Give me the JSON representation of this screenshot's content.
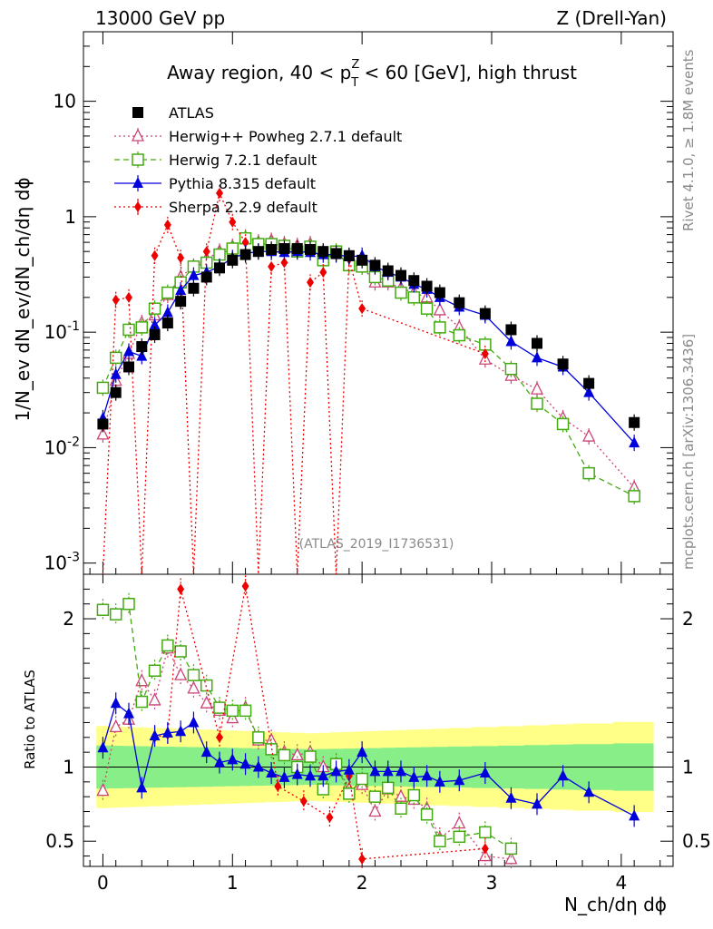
{
  "chart_data": {
    "type": "scatter",
    "header_left": "13000 GeV pp",
    "header_right": "Z (Drell-Yan)",
    "title_main": "Away region, 40 < p",
    "title_sup": "Z",
    "title_sub": "T",
    "title_rest": " < 60 [GeV], high thrust",
    "ylabel": "1/N_ev dN_ev/dN_ch/dη dϕ",
    "xlabel": "N_ch/dη dϕ",
    "ratio_ylabel": "Ratio to ATLAS",
    "watermark": "(ATLAS_2019_I1736531)",
    "side_label_top": "Rivet 4.1.0, ≥ 1.8M events",
    "side_label_bottom": "mcplots.cern.ch [arXiv:1306.3436]",
    "xlim": [
      -0.15,
      4.4
    ],
    "ylim": [
      0.0008,
      40
    ],
    "ratio_ylim": [
      0.33,
      2.3
    ],
    "x_ticks": [
      "0",
      "1",
      "2",
      "3",
      "4"
    ],
    "y_ticks": [
      "10^-3",
      "10^-2",
      "10^-1",
      "1",
      "10"
    ],
    "ratio_ticks": [
      "0.5",
      "1",
      "2"
    ],
    "ratio_ticks_right": [
      "0.5",
      "1",
      "2"
    ],
    "legend": [
      {
        "name": "ATLAS",
        "color": "#000000",
        "marker": "square"
      },
      {
        "name": "Herwig++ Powheg 2.7.1 default",
        "color": "#cc4477",
        "marker": "triangle-open",
        "dash": "dotted"
      },
      {
        "name": "Herwig 7.2.1 default",
        "color": "#44aa11",
        "marker": "square-open",
        "dash": "dashed"
      },
      {
        "name": "Pythia 8.315 default",
        "color": "#0000dd",
        "marker": "triangle",
        "dash": "solid"
      },
      {
        "name": "Sherpa 2.2.9 default",
        "color": "#ee0000",
        "marker": "diamond",
        "dash": "dotted"
      }
    ],
    "series": [
      {
        "name": "ATLAS",
        "color": "#000000",
        "x": [
          0.0,
          0.1,
          0.2,
          0.3,
          0.4,
          0.5,
          0.6,
          0.7,
          0.8,
          0.9,
          1.0,
          1.1,
          1.2,
          1.3,
          1.4,
          1.5,
          1.6,
          1.7,
          1.8,
          1.9,
          2.0,
          2.1,
          2.2,
          2.3,
          2.4,
          2.5,
          2.6,
          2.75,
          2.95,
          3.15,
          3.35,
          3.55,
          3.75,
          4.1
        ],
        "y": [
          0.016,
          0.03,
          0.05,
          0.075,
          0.095,
          0.12,
          0.185,
          0.24,
          0.3,
          0.36,
          0.42,
          0.47,
          0.5,
          0.52,
          0.53,
          0.53,
          0.52,
          0.5,
          0.48,
          0.46,
          0.42,
          0.38,
          0.34,
          0.31,
          0.28,
          0.25,
          0.22,
          0.18,
          0.145,
          0.105,
          0.08,
          0.053,
          0.036,
          0.0165
        ]
      },
      {
        "name": "Herwig++ Powheg 2.7.1 default",
        "color": "#cc4477",
        "x": [
          0.0,
          0.1,
          0.2,
          0.3,
          0.4,
          0.5,
          0.6,
          0.7,
          0.8,
          0.9,
          1.0,
          1.1,
          1.2,
          1.3,
          1.4,
          1.5,
          1.6,
          1.7,
          1.8,
          1.9,
          2.0,
          2.1,
          2.2,
          2.3,
          2.4,
          2.5,
          2.6,
          2.75,
          2.95,
          3.15,
          3.35,
          3.55,
          3.75,
          4.1
        ],
        "y": [
          0.013,
          0.038,
          0.065,
          0.12,
          0.14,
          0.21,
          0.3,
          0.37,
          0.43,
          0.5,
          0.55,
          0.66,
          0.6,
          0.62,
          0.58,
          0.56,
          0.58,
          0.5,
          0.49,
          0.38,
          0.37,
          0.27,
          0.27,
          0.24,
          0.22,
          0.2,
          0.155,
          0.11,
          0.058,
          0.042,
          0.032,
          0.018,
          0.0125,
          0.0045
        ]
      },
      {
        "name": "Herwig 7.2.1 default",
        "color": "#44aa11",
        "x": [
          0.0,
          0.1,
          0.2,
          0.3,
          0.4,
          0.5,
          0.6,
          0.7,
          0.8,
          0.9,
          1.0,
          1.1,
          1.2,
          1.3,
          1.4,
          1.5,
          1.6,
          1.7,
          1.8,
          1.9,
          2.0,
          2.1,
          2.2,
          2.3,
          2.4,
          2.5,
          2.6,
          2.75,
          2.95,
          3.15,
          3.35,
          3.55,
          3.75,
          4.1
        ],
        "y": [
          0.033,
          0.06,
          0.105,
          0.11,
          0.16,
          0.22,
          0.27,
          0.37,
          0.4,
          0.47,
          0.53,
          0.65,
          0.58,
          0.58,
          0.56,
          0.5,
          0.55,
          0.42,
          0.5,
          0.38,
          0.37,
          0.3,
          0.28,
          0.22,
          0.2,
          0.16,
          0.11,
          0.094,
          0.078,
          0.048,
          0.024,
          0.016,
          0.006,
          0.0038
        ]
      },
      {
        "name": "Pythia 8.315 default",
        "color": "#0000dd",
        "x": [
          0.0,
          0.1,
          0.2,
          0.3,
          0.4,
          0.5,
          0.6,
          0.7,
          0.8,
          0.9,
          1.0,
          1.1,
          1.2,
          1.3,
          1.4,
          1.5,
          1.6,
          1.7,
          1.8,
          1.9,
          2.0,
          2.1,
          2.2,
          2.3,
          2.4,
          2.5,
          2.6,
          2.75,
          2.95,
          3.15,
          3.35,
          3.55,
          3.75,
          4.1
        ],
        "y": [
          0.018,
          0.043,
          0.068,
          0.062,
          0.115,
          0.148,
          0.23,
          0.31,
          0.33,
          0.37,
          0.44,
          0.48,
          0.5,
          0.5,
          0.49,
          0.5,
          0.49,
          0.47,
          0.47,
          0.45,
          0.46,
          0.37,
          0.33,
          0.3,
          0.26,
          0.235,
          0.2,
          0.165,
          0.14,
          0.083,
          0.06,
          0.05,
          0.03,
          0.011
        ]
      },
      {
        "name": "Sherpa 2.2.9 default",
        "color": "#ee0000",
        "x": [
          0.0,
          0.1,
          0.2,
          0.3,
          0.4,
          0.5,
          0.6,
          0.7,
          0.8,
          0.9,
          1.0,
          1.1,
          1.2,
          1.3,
          1.4,
          1.5,
          1.6,
          1.7,
          1.8,
          1.9,
          2.0,
          2.95
        ],
        "y": [
          1e-05,
          0.19,
          0.2,
          1e-05,
          0.46,
          0.85,
          0.44,
          1e-05,
          0.5,
          1.6,
          0.9,
          0.6,
          1e-05,
          0.37,
          0.4,
          1e-05,
          0.27,
          0.33,
          1e-05,
          0.43,
          0.16,
          0.065
        ]
      }
    ],
    "ratio_series": [
      {
        "name": "Herwig++ Powheg 2.7.1 default",
        "color": "#cc4477",
        "x": [
          0.0,
          0.1,
          0.2,
          0.3,
          0.4,
          0.5,
          0.6,
          0.7,
          0.8,
          0.9,
          1.0,
          1.1,
          1.2,
          1.3,
          1.4,
          1.5,
          1.6,
          1.7,
          1.8,
          1.9,
          2.0,
          2.1,
          2.2,
          2.3,
          2.4,
          2.5,
          2.6,
          2.75,
          2.95,
          3.15
        ],
        "y": [
          0.84,
          1.27,
          1.32,
          1.58,
          1.45,
          1.8,
          1.62,
          1.53,
          1.43,
          1.38,
          1.33,
          1.4,
          1.18,
          1.18,
          1.1,
          1.08,
          1.1,
          1.0,
          1.02,
          0.85,
          0.88,
          0.7,
          0.85,
          0.8,
          0.78,
          0.72,
          0.52,
          0.62,
          0.4,
          0.38
        ]
      },
      {
        "name": "Herwig 7.2.1 default",
        "color": "#44aa11",
        "x": [
          0.0,
          0.1,
          0.2,
          0.3,
          0.4,
          0.5,
          0.6,
          0.7,
          0.8,
          0.9,
          1.0,
          1.1,
          1.2,
          1.3,
          1.4,
          1.5,
          1.6,
          1.7,
          1.8,
          1.9,
          2.0,
          2.1,
          2.2,
          2.3,
          2.4,
          2.5,
          2.6,
          2.75,
          2.95,
          3.15
        ],
        "y": [
          2.06,
          2.03,
          2.1,
          1.44,
          1.65,
          1.82,
          1.78,
          1.62,
          1.55,
          1.4,
          1.38,
          1.38,
          1.2,
          1.12,
          1.08,
          1.0,
          1.07,
          0.85,
          1.02,
          0.82,
          0.92,
          0.8,
          0.86,
          0.72,
          0.81,
          0.68,
          0.5,
          0.53,
          0.56,
          0.45
        ]
      },
      {
        "name": "Pythia 8.315 default",
        "color": "#0000dd",
        "x": [
          0.0,
          0.1,
          0.2,
          0.3,
          0.4,
          0.5,
          0.6,
          0.7,
          0.8,
          0.9,
          1.0,
          1.1,
          1.2,
          1.3,
          1.4,
          1.5,
          1.6,
          1.7,
          1.8,
          1.9,
          2.0,
          2.1,
          2.2,
          2.3,
          2.4,
          2.5,
          2.6,
          2.75,
          2.95,
          3.15,
          3.35,
          3.55,
          3.75,
          4.1
        ],
        "y": [
          1.13,
          1.43,
          1.36,
          0.86,
          1.21,
          1.23,
          1.24,
          1.3,
          1.1,
          1.03,
          1.05,
          1.02,
          1.0,
          0.96,
          0.93,
          0.95,
          0.94,
          0.94,
          0.97,
          0.98,
          1.1,
          0.97,
          0.97,
          0.97,
          0.93,
          0.94,
          0.9,
          0.91,
          0.96,
          0.79,
          0.75,
          0.94,
          0.83,
          0.67
        ]
      },
      {
        "name": "Sherpa 2.2.9 default",
        "color": "#ee0000",
        "x": [
          0.4,
          0.5,
          0.6,
          0.9,
          1.1,
          1.35,
          1.55,
          1.75,
          1.9,
          2.0,
          2.95
        ],
        "y": [
          1.2,
          1.22,
          2.2,
          1.2,
          2.22,
          0.87,
          0.77,
          0.66,
          0.94,
          0.38,
          0.45
        ]
      }
    ]
  }
}
